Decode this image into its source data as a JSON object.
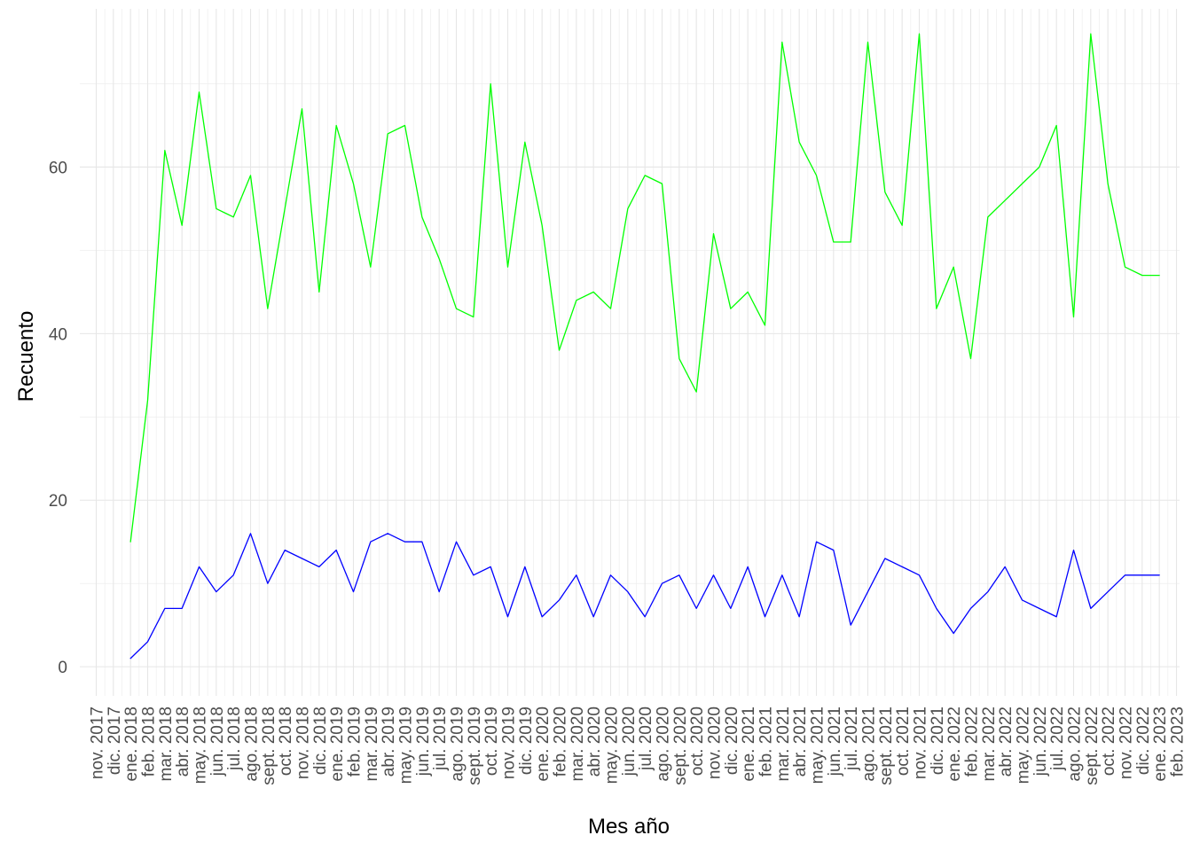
{
  "chart_data": {
    "type": "line",
    "xlabel": "Mes año",
    "ylabel": "Recuento",
    "ylim": [
      -3.5,
      79
    ],
    "y_ticks": [
      0,
      20,
      40,
      60
    ],
    "grid": true,
    "legend": "none",
    "x_tick_labels": [
      "nov. 2017",
      "dic. 2017",
      "ene. 2018",
      "feb. 2018",
      "mar. 2018",
      "abr. 2018",
      "may. 2018",
      "jun. 2018",
      "jul. 2018",
      "ago. 2018",
      "sept. 2018",
      "oct. 2018",
      "nov. 2018",
      "dic. 2018",
      "ene. 2019",
      "feb. 2019",
      "mar. 2019",
      "abr. 2019",
      "may. 2019",
      "jun. 2019",
      "jul. 2019",
      "ago. 2019",
      "sept. 2019",
      "oct. 2019",
      "nov. 2019",
      "dic. 2019",
      "ene. 2020",
      "feb. 2020",
      "mar. 2020",
      "abr. 2020",
      "may. 2020",
      "jun. 2020",
      "jul. 2020",
      "ago. 2020",
      "sept. 2020",
      "oct. 2020",
      "nov. 2020",
      "dic. 2020",
      "ene. 2021",
      "feb. 2021",
      "mar. 2021",
      "abr. 2021",
      "may. 2021",
      "jun. 2021",
      "jul. 2021",
      "ago. 2021",
      "sept. 2021",
      "oct. 2021",
      "nov. 2021",
      "dic. 2021",
      "ene. 2022",
      "feb. 2022",
      "mar. 2022",
      "abr. 2022",
      "may. 2022",
      "jun. 2022",
      "jul. 2022",
      "ago. 2022",
      "sept. 2022",
      "oct. 2022",
      "nov. 2022",
      "dic. 2022",
      "ene. 2023",
      "feb. 2023"
    ],
    "x": [
      "2018-01",
      "2018-02",
      "2018-03",
      "2018-04",
      "2018-05",
      "2018-06",
      "2018-07",
      "2018-08",
      "2018-09",
      "2018-10",
      "2018-11",
      "2018-12",
      "2019-01",
      "2019-02",
      "2019-03",
      "2019-04",
      "2019-05",
      "2019-06",
      "2019-07",
      "2019-08",
      "2019-09",
      "2019-10",
      "2019-11",
      "2019-12",
      "2020-01",
      "2020-02",
      "2020-03",
      "2020-04",
      "2020-05",
      "2020-06",
      "2020-07",
      "2020-08",
      "2020-09",
      "2020-10",
      "2020-11",
      "2020-12",
      "2021-01",
      "2021-02",
      "2021-03",
      "2021-04",
      "2021-05",
      "2021-06",
      "2021-07",
      "2021-08",
      "2021-09",
      "2021-10",
      "2021-11",
      "2021-12",
      "2022-01",
      "2022-02",
      "2022-03",
      "2022-04",
      "2022-05",
      "2022-06",
      "2022-07",
      "2022-08",
      "2022-09",
      "2022-10",
      "2022-11",
      "2022-12",
      "2023-01"
    ],
    "series": [
      {
        "color": "#00ff00",
        "values": [
          15,
          32,
          62,
          53,
          69,
          55,
          54,
          59,
          43,
          55,
          67,
          45,
          65,
          58,
          48,
          64,
          65,
          54,
          49,
          43,
          42,
          70,
          48,
          63,
          53,
          38,
          44,
          45,
          43,
          55,
          59,
          58,
          37,
          33,
          52,
          43,
          45,
          41,
          75,
          63,
          59,
          51,
          51,
          75,
          57,
          53,
          76,
          43,
          48,
          37,
          54,
          56,
          58,
          60,
          65,
          42,
          76,
          58,
          48,
          47,
          47
        ]
      },
      {
        "color": "#0000ff",
        "values": [
          1,
          3,
          7,
          7,
          12,
          9,
          11,
          16,
          10,
          14,
          13,
          12,
          14,
          9,
          15,
          16,
          15,
          15,
          9,
          15,
          11,
          12,
          6,
          12,
          6,
          8,
          11,
          6,
          11,
          9,
          6,
          10,
          11,
          7,
          11,
          7,
          12,
          6,
          11,
          6,
          15,
          14,
          5,
          9,
          13,
          12,
          11,
          7,
          4,
          7,
          9,
          12,
          8,
          7,
          6,
          14,
          7,
          9,
          11,
          11,
          11
        ]
      }
    ]
  }
}
